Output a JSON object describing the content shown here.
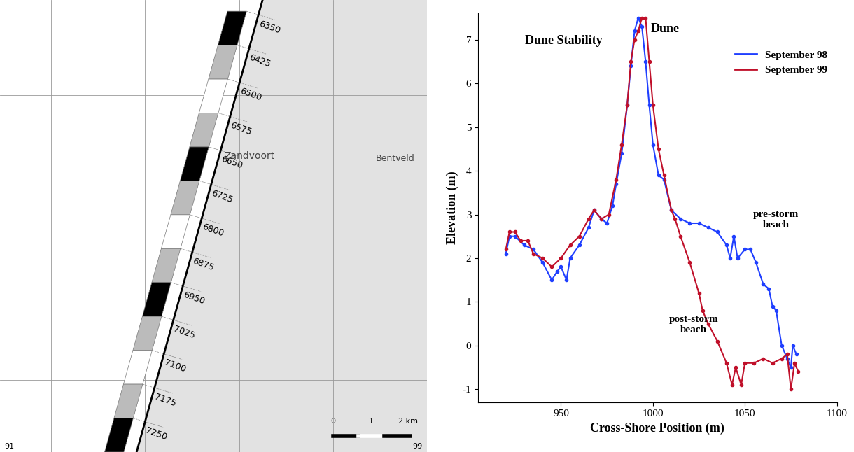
{
  "map": {
    "transects": [
      6350,
      6425,
      6500,
      6575,
      6650,
      6725,
      6800,
      6875,
      6950,
      7025,
      7100,
      7175,
      7250
    ],
    "places": [
      "Zandvoort",
      "Bentveld"
    ],
    "scale": [
      "0",
      "1",
      "2 km"
    ],
    "corners": [
      "91",
      "99"
    ]
  },
  "chart_data": {
    "type": "line",
    "x_label": "Cross-Shore Position (m)",
    "y_label": "Elevation (m)",
    "annotations": [
      "Dune Stability",
      "Dune",
      "pre-storm\nbeach",
      "post-storm\nbeach"
    ],
    "xlim": [
      905,
      1100
    ],
    "xticks": [
      950,
      1000,
      1050,
      1100
    ],
    "ylim": [
      -1.3,
      7.6
    ],
    "yticks": [
      -1,
      0,
      1,
      2,
      3,
      4,
      5,
      6,
      7
    ],
    "grid": false,
    "legend": "upper right",
    "series": [
      {
        "name": "September 98",
        "color": "#1f3fff",
        "marker": "dot",
        "line_style": "solid",
        "x": [
          920,
          922,
          925,
          930,
          935,
          940,
          945,
          948,
          950,
          953,
          955,
          960,
          965,
          968,
          972,
          975,
          978,
          980,
          983,
          986,
          988,
          990,
          992,
          994,
          996,
          998,
          1000,
          1003,
          1006,
          1010,
          1015,
          1020,
          1025,
          1030,
          1035,
          1040,
          1042,
          1044,
          1046,
          1050,
          1053,
          1056,
          1060,
          1063,
          1065,
          1067,
          1070,
          1073,
          1075,
          1076,
          1078
        ],
        "values": [
          2.1,
          2.5,
          2.5,
          2.3,
          2.2,
          1.9,
          1.5,
          1.7,
          1.8,
          1.5,
          2.0,
          2.3,
          2.7,
          3.1,
          2.9,
          2.8,
          3.2,
          3.7,
          4.4,
          5.5,
          6.4,
          7.2,
          7.5,
          7.3,
          6.5,
          5.5,
          4.6,
          3.9,
          3.8,
          3.1,
          2.9,
          2.8,
          2.8,
          2.7,
          2.6,
          2.3,
          2.0,
          2.5,
          2.0,
          2.2,
          2.2,
          1.9,
          1.4,
          1.3,
          0.9,
          0.8,
          0.0,
          -0.3,
          -0.5,
          0.0,
          -0.2
        ]
      },
      {
        "name": "September 99",
        "color": "#c0102a",
        "marker": "dot",
        "line_style": "solid",
        "x": [
          920,
          922,
          925,
          928,
          932,
          935,
          940,
          945,
          950,
          955,
          960,
          965,
          968,
          972,
          976,
          980,
          983,
          986,
          988,
          990,
          992,
          994,
          996,
          998,
          1000,
          1003,
          1006,
          1010,
          1012,
          1015,
          1020,
          1025,
          1027,
          1030,
          1035,
          1040,
          1043,
          1045,
          1048,
          1050,
          1055,
          1060,
          1065,
          1070,
          1073,
          1075,
          1077,
          1079
        ],
        "values": [
          2.2,
          2.6,
          2.6,
          2.4,
          2.4,
          2.1,
          2.0,
          1.8,
          2.0,
          2.3,
          2.5,
          2.9,
          3.1,
          2.9,
          3.0,
          3.8,
          4.6,
          5.5,
          6.5,
          7.0,
          7.2,
          7.5,
          7.5,
          6.5,
          5.5,
          4.5,
          3.9,
          3.1,
          2.9,
          2.5,
          1.9,
          1.2,
          0.8,
          0.5,
          0.1,
          -0.4,
          -0.9,
          -0.5,
          -0.9,
          -0.4,
          -0.4,
          -0.3,
          -0.4,
          -0.3,
          -0.2,
          -1.0,
          -0.4,
          -0.6
        ]
      }
    ]
  }
}
